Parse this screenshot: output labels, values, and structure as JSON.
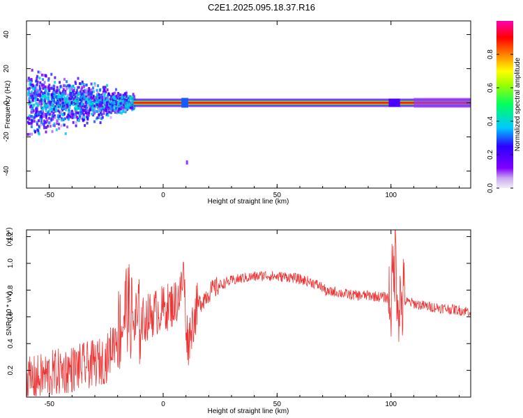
{
  "title": "C2E1.2025.095.18.37.R16",
  "chart_data": [
    {
      "type": "heatmap",
      "xlabel": "Height of straight line (km)",
      "ylabel": "Frequency (Hz)",
      "xlim": [
        -60,
        135
      ],
      "ylim": [
        -50,
        48
      ],
      "xticks": [
        "-50",
        "0",
        "50",
        "100"
      ],
      "xtick_values": [
        -50,
        0,
        50,
        100
      ],
      "yticks": [
        "40",
        "20",
        "0",
        "-20",
        "-40"
      ],
      "ytick_values": [
        40,
        20,
        0,
        -20,
        -40
      ],
      "colorbar": {
        "label": "Normalized spectral amplitude",
        "range": [
          0,
          1
        ],
        "ticks": [
          "0.0",
          "0.2",
          "0.4",
          "0.6",
          "0.8"
        ],
        "tick_values": [
          0.0,
          0.2,
          0.4,
          0.6,
          0.8
        ],
        "colors": [
          "#f0e8f8",
          "#7f00ff",
          "#0000ff",
          "#00e5ff",
          "#00ff40",
          "#ffff00",
          "#ff8000",
          "#ff0000",
          "#ff00a0"
        ]
      },
      "regions": [
        {
          "x": [
            -60,
            -13
          ],
          "freq_center": 0,
          "freq_spread": 10,
          "amplitude": 0.25,
          "description_note": "scattered broadband"
        },
        {
          "x": [
            -13,
            135
          ],
          "freq_center": 0,
          "freq_spread": 1,
          "amplitude": 0.95
        }
      ]
    },
    {
      "type": "line",
      "xlabel": "Height of straight line (km)",
      "ylabel": "SNR (10 * v/v)",
      "yscale_label": "(x10⁴)",
      "xlim": [
        -60,
        135
      ],
      "ylim": [
        0,
        1.25
      ],
      "xticks": [
        "-50",
        "0",
        "50",
        "100"
      ],
      "xtick_values": [
        -50,
        0,
        50,
        100
      ],
      "yticks": [
        "1.2",
        "1.0",
        "0.8",
        "0.6",
        "0.4",
        "0.2"
      ],
      "ytick_values": [
        1.2,
        1.0,
        0.8,
        0.6,
        0.4,
        0.2
      ],
      "series": [
        {
          "color": "#ee3333",
          "x": [
            -60,
            -55,
            -50,
            -45,
            -40,
            -35,
            -30,
            -25,
            -20,
            -18,
            -16,
            -14,
            -12,
            -10,
            -5,
            0,
            5,
            8,
            9,
            10,
            11,
            12,
            15,
            20,
            25,
            30,
            35,
            40,
            45,
            50,
            55,
            60,
            65,
            70,
            72,
            75,
            80,
            85,
            90,
            95,
            100,
            101,
            102,
            103,
            104,
            105,
            110,
            115,
            120,
            125,
            130,
            135
          ],
          "y": [
            0.12,
            0.14,
            0.17,
            0.19,
            0.21,
            0.23,
            0.25,
            0.28,
            0.48,
            0.55,
            0.7,
            0.6,
            0.52,
            0.56,
            0.62,
            0.66,
            0.7,
            0.8,
            0.95,
            0.55,
            0.4,
            0.5,
            0.68,
            0.78,
            0.84,
            0.87,
            0.89,
            0.9,
            0.91,
            0.9,
            0.9,
            0.88,
            0.86,
            0.82,
            0.78,
            0.79,
            0.77,
            0.76,
            0.76,
            0.75,
            0.74,
            0.9,
            1.1,
            0.75,
            0.7,
            0.72,
            0.7,
            0.68,
            0.67,
            0.66,
            0.65,
            0.64
          ]
        }
      ]
    }
  ]
}
